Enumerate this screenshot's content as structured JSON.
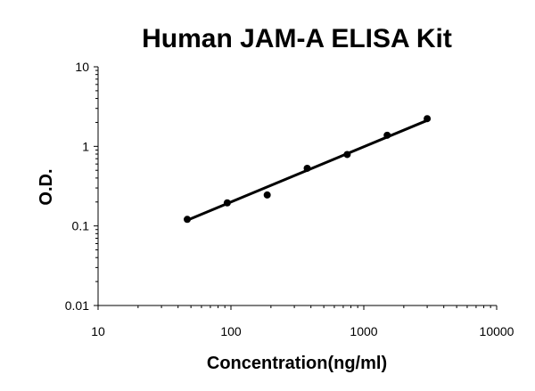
{
  "chart_data": {
    "type": "scatter",
    "title": "Human JAM-A ELISA Kit",
    "xlabel": "Concentration(ng/ml)",
    "ylabel": "O.D.",
    "x_scale": "log",
    "y_scale": "log",
    "xlim": [
      10,
      10000
    ],
    "ylim": [
      0.01,
      10
    ],
    "x_ticks": [
      10,
      100,
      1000,
      10000
    ],
    "x_tick_labels": [
      "10",
      "100",
      "1000",
      "10000"
    ],
    "y_ticks": [
      0.01,
      0.1,
      1,
      10
    ],
    "y_tick_labels": [
      "0.01",
      "0.1",
      "1",
      "10"
    ],
    "grid": false,
    "legend": "none",
    "series": [
      {
        "x": [
          46.9,
          93.8,
          187.5,
          375,
          750,
          1500,
          3000
        ],
        "y": [
          0.121,
          0.195,
          0.245,
          0.53,
          0.79,
          1.38,
          2.23
        ]
      }
    ],
    "fit_line": {
      "x": [
        46.9,
        3000
      ],
      "y": [
        0.118,
        2.12
      ]
    }
  }
}
